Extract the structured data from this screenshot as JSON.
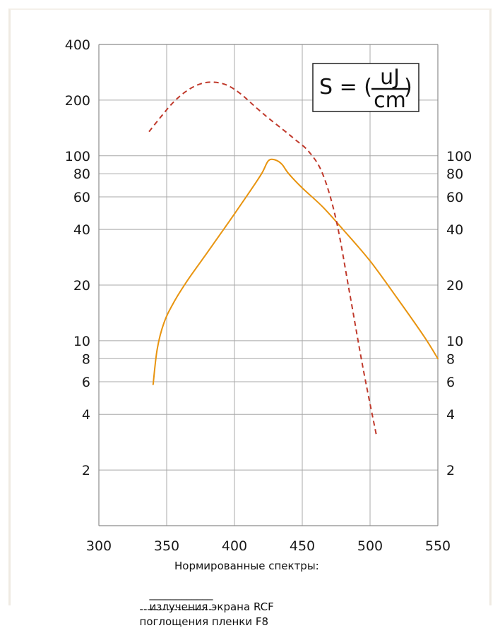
{
  "chart_data": {
    "type": "line",
    "y_scale": "log",
    "xlim": [
      300,
      550
    ],
    "ylim": [
      1,
      400
    ],
    "grid": true,
    "x_ticks": [
      300,
      350,
      400,
      450,
      500,
      550
    ],
    "y_ticks_left": [
      400,
      200,
      100,
      80,
      60,
      40,
      20,
      10,
      8,
      6,
      4,
      2
    ],
    "y_ticks_right": [
      100,
      80,
      60,
      40,
      20,
      10,
      8,
      6,
      4,
      2
    ],
    "formula": {
      "lhs": "S = (",
      "numerator": "uJ",
      "denominator": "cm",
      "rhs": ")"
    },
    "legend": {
      "title": "Нормированные спектры:",
      "entries": [
        {
          "key": "____________",
          "label": "излучения экрана RCF"
        },
        {
          "key": "-------------------",
          "label": "поглощения пленки F8"
        }
      ]
    },
    "series": [
      {
        "style": "solid",
        "color": "#e8940f",
        "x": [
          340,
          343,
          348,
          355,
          365,
          380,
          395,
          410,
          420,
          425,
          430,
          435,
          440,
          450,
          465,
          480,
          500,
          520,
          540,
          550
        ],
        "y": [
          5.8,
          9,
          12.5,
          16,
          21,
          30,
          43,
          62,
          80,
          94,
          95,
          90,
          80,
          67,
          53,
          40,
          27,
          17,
          10.5,
          8
        ]
      },
      {
        "style": "dashed",
        "color": "#c0392b",
        "x": [
          337,
          345,
          355,
          365,
          375,
          385,
          395,
          405,
          415,
          425,
          435,
          445,
          455,
          465,
          475,
          485,
          495,
          505
        ],
        "y": [
          135,
          160,
          195,
          225,
          245,
          250,
          240,
          215,
          185,
          160,
          140,
          122,
          105,
          80,
          45,
          18,
          7,
          3
        ]
      }
    ]
  }
}
